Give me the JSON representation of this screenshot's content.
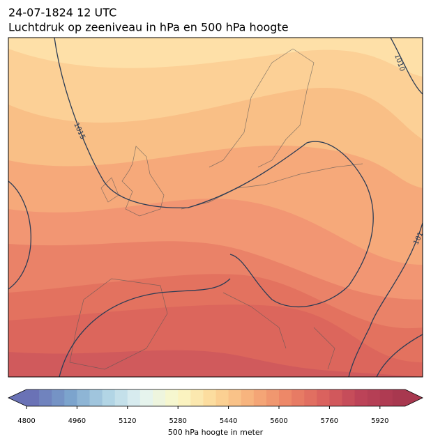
{
  "title": "24-07-1824 12 UTC",
  "subtitle": "Luchtdruk op zeeniveau in hPa en 500 hPa hoogte",
  "map": {
    "contour_labels": [
      "1010",
      "1015",
      "101"
    ]
  },
  "colorbar": {
    "label": "500 hPa hoogte in meter",
    "lim": [
      4800,
      6000
    ],
    "step": 40,
    "ticks": [
      4800,
      4960,
      5120,
      5280,
      5440,
      5600,
      5760,
      5920
    ],
    "colormap": [
      "#6a72b6",
      "#7aa2cc",
      "#aed3e4",
      "#e4f3f2",
      "#fbf8c6",
      "#fcd797",
      "#f6ae7a",
      "#ec8466",
      "#d9605d",
      "#bb4258",
      "#a8384f"
    ]
  }
}
